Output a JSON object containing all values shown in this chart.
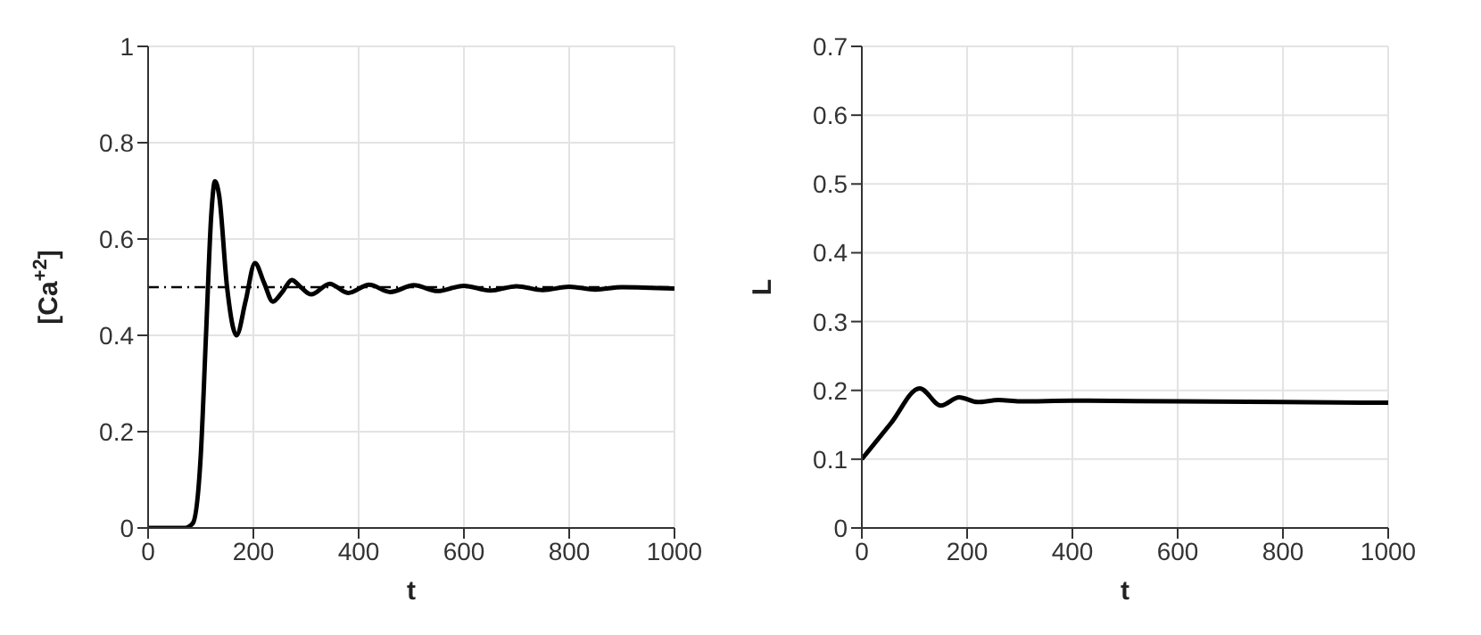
{
  "chart_data": [
    {
      "type": "line",
      "xlabel": "t",
      "ylabel": "[Ca$^{+2}$]",
      "grid": true,
      "xlim": [
        0,
        1000
      ],
      "ylim": [
        0,
        1
      ],
      "xticks": [
        0,
        200,
        400,
        600,
        800,
        1000
      ],
      "yticks": [
        0,
        0.2,
        0.4,
        0.6,
        0.8,
        1
      ],
      "ref_lines": [
        {
          "axis": "y",
          "value": 0.5,
          "color": "#000000",
          "line_style": "dashdot"
        }
      ],
      "series": [
        {
          "color": "#000000",
          "x": [
            0,
            70,
            85,
            100,
            110,
            120,
            127,
            135,
            150,
            168,
            185,
            203,
            220,
            237,
            255,
            273,
            290,
            310,
            345,
            380,
            420,
            460,
            505,
            550,
            600,
            650,
            700,
            750,
            800,
            850,
            900,
            1000
          ],
          "values": [
            0,
            0,
            0.01,
            0.15,
            0.4,
            0.65,
            0.72,
            0.69,
            0.5,
            0.4,
            0.47,
            0.55,
            0.51,
            0.47,
            0.49,
            0.515,
            0.5,
            0.485,
            0.507,
            0.488,
            0.505,
            0.49,
            0.504,
            0.492,
            0.503,
            0.493,
            0.502,
            0.494,
            0.501,
            0.495,
            0.5,
            0.497
          ]
        }
      ]
    },
    {
      "type": "line",
      "xlabel": "t",
      "ylabel": "L",
      "grid": true,
      "xlim": [
        0,
        1000
      ],
      "ylim": [
        0,
        0.7
      ],
      "xticks": [
        0,
        200,
        400,
        600,
        800,
        1000
      ],
      "yticks": [
        0,
        0.1,
        0.2,
        0.3,
        0.4,
        0.5,
        0.6,
        0.7
      ],
      "series": [
        {
          "color": "#000000",
          "x": [
            0,
            55,
            110,
            150,
            185,
            220,
            260,
            300,
            400,
            600,
            1000
          ],
          "values": [
            0.1,
            0.152,
            0.203,
            0.178,
            0.19,
            0.183,
            0.186,
            0.184,
            0.185,
            0.184,
            0.182
          ]
        }
      ]
    }
  ]
}
